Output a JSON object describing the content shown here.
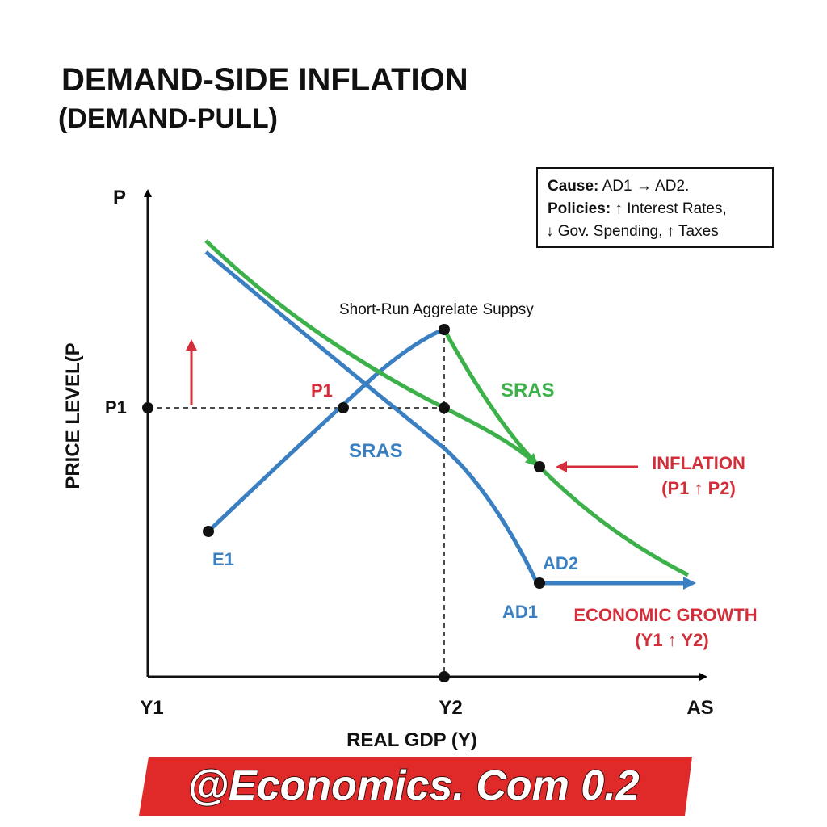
{
  "header": {
    "title": "DEMAND-SIDE INFLATION",
    "subtitle": "(DEMAND-PULL)"
  },
  "note": {
    "lines": [
      {
        "label": "Cause:",
        "text": " AD1 → AD2."
      },
      {
        "label": "Policies:",
        "text": " ↑ Interest Rates,"
      },
      {
        "text": "↓ Gov. Spending, ↑ Taxes"
      }
    ]
  },
  "axes": {
    "y_letter": "P",
    "y_title": "PRICE LEVEL(P",
    "y_tick": "P1",
    "x_ticks": [
      "Y1",
      "Y2",
      "AS"
    ],
    "x_title": "REAL GDP (Y)"
  },
  "labels": {
    "curve_caption": "Short-Run Aggrelate Suppsy",
    "p1_point": "P1",
    "sras_green": "SRAS",
    "sras_blue": "SRAS",
    "inflation": "INFLATION",
    "inflation_detail": "(P1 ↑ P2)",
    "e1": "E1",
    "ad2": "AD2",
    "ad1": "AD1",
    "growth": "ECONOMIC GROWTH",
    "growth_detail": "(Y1 ↑ Y2)"
  },
  "banner": {
    "text": "@Economics. Com 0.2"
  }
}
